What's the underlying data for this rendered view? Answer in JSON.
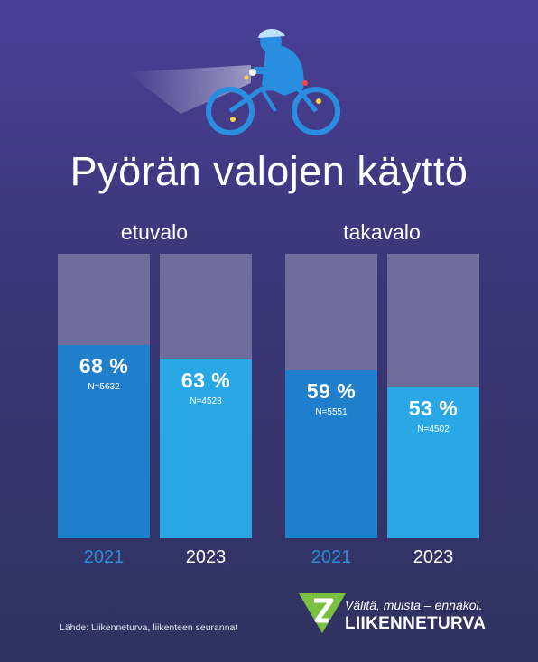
{
  "title": "Pyörän valojen käyttö",
  "groups": [
    {
      "label": "etuvalo"
    },
    {
      "label": "takavalo"
    }
  ],
  "chart_data": {
    "type": "bar",
    "title": "Pyörän valojen käyttö",
    "ylim": [
      0,
      100
    ],
    "unit": "%",
    "grid": false,
    "groups": [
      {
        "name": "etuvalo",
        "bars": [
          {
            "year": "2021",
            "value": 68,
            "value_label": "68 %",
            "n_label": "N=5632"
          },
          {
            "year": "2023",
            "value": 63,
            "value_label": "63 %",
            "n_label": "N=4523"
          }
        ]
      },
      {
        "name": "takavalo",
        "bars": [
          {
            "year": "2021",
            "value": 59,
            "value_label": "59 %",
            "n_label": "N=5551"
          },
          {
            "year": "2023",
            "value": 53,
            "value_label": "53 %",
            "n_label": "N=4502"
          }
        ]
      }
    ]
  },
  "colors": {
    "background": "#3c3878",
    "track": "#6f6b9a",
    "bar_2021": "#1f7fcc",
    "bar_2023": "#2aa8e6",
    "year_2021_text": "#2f8bd6",
    "logo_green": "#7ac142"
  },
  "icons": {
    "hero": "cyclist-with-light-icon",
    "logo": "liikenneturva-logo-icon"
  },
  "footer": {
    "source": "Lähde: Liikenneturva, liikenteen seurannat",
    "slogan": "Välitä, muista – ennakoi.",
    "brand": "LIIKENNETURVA"
  }
}
